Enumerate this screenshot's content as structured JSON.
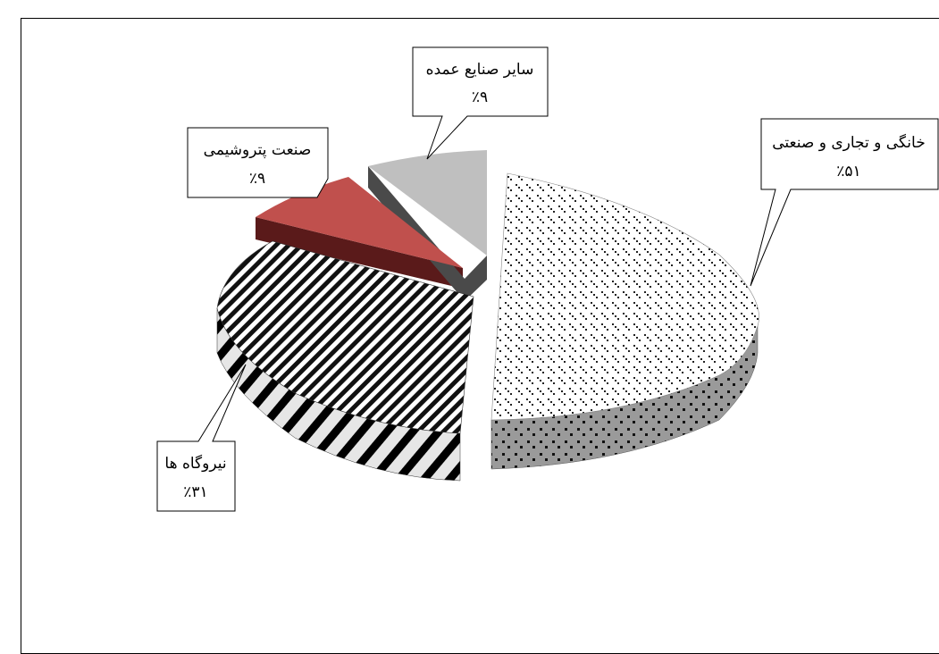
{
  "chart_data": {
    "type": "pie",
    "title": "",
    "slices": [
      {
        "label": "خانگی و تجاری و صنعتی",
        "value_label": "٪۵۱",
        "value": 51,
        "pattern": "dots"
      },
      {
        "label": "نیروگاه ها",
        "value_label": "٪۳۱",
        "value": 31,
        "pattern": "stripes"
      },
      {
        "label": "صنعت پتروشیمی",
        "value_label": "٪۹",
        "value": 9,
        "color": "#c0504d"
      },
      {
        "label": "سایر صنایع عمده",
        "value_label": "٪۹",
        "value": 9,
        "color": "#bfbfbf"
      }
    ]
  }
}
